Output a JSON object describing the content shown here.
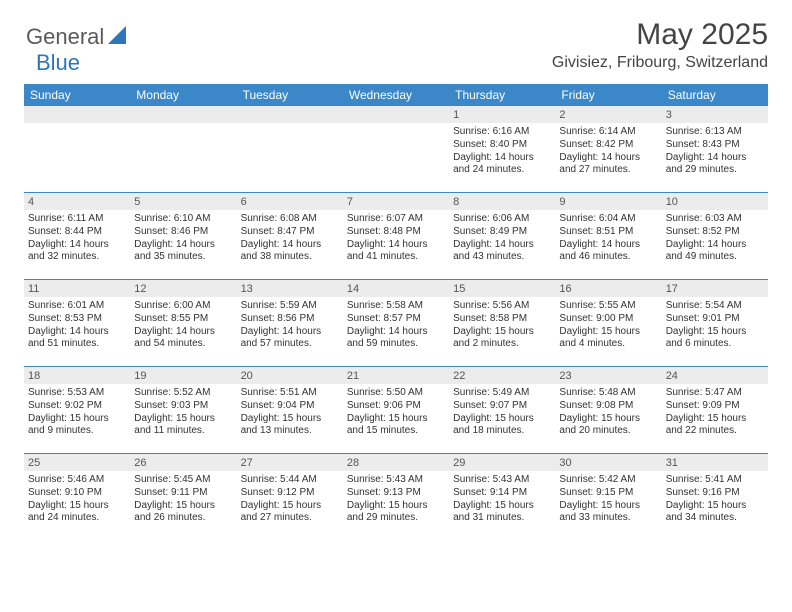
{
  "brand": {
    "text_general": "General",
    "text_blue": "Blue",
    "shape_color": "#2f76b8"
  },
  "title": "May 2025",
  "location": "Givisiez, Fribourg, Switzerland",
  "header_bg": "#3b87c8",
  "daynum_bg": "#ececec",
  "row_border": "#3b87c8",
  "weekdays": [
    "Sunday",
    "Monday",
    "Tuesday",
    "Wednesday",
    "Thursday",
    "Friday",
    "Saturday"
  ],
  "weeks": [
    [
      {
        "day": "",
        "sunrise": "",
        "sunset": "",
        "daylight": ""
      },
      {
        "day": "",
        "sunrise": "",
        "sunset": "",
        "daylight": ""
      },
      {
        "day": "",
        "sunrise": "",
        "sunset": "",
        "daylight": ""
      },
      {
        "day": "",
        "sunrise": "",
        "sunset": "",
        "daylight": ""
      },
      {
        "day": "1",
        "sunrise": "Sunrise: 6:16 AM",
        "sunset": "Sunset: 8:40 PM",
        "daylight": "Daylight: 14 hours and 24 minutes."
      },
      {
        "day": "2",
        "sunrise": "Sunrise: 6:14 AM",
        "sunset": "Sunset: 8:42 PM",
        "daylight": "Daylight: 14 hours and 27 minutes."
      },
      {
        "day": "3",
        "sunrise": "Sunrise: 6:13 AM",
        "sunset": "Sunset: 8:43 PM",
        "daylight": "Daylight: 14 hours and 29 minutes."
      }
    ],
    [
      {
        "day": "4",
        "sunrise": "Sunrise: 6:11 AM",
        "sunset": "Sunset: 8:44 PM",
        "daylight": "Daylight: 14 hours and 32 minutes."
      },
      {
        "day": "5",
        "sunrise": "Sunrise: 6:10 AM",
        "sunset": "Sunset: 8:46 PM",
        "daylight": "Daylight: 14 hours and 35 minutes."
      },
      {
        "day": "6",
        "sunrise": "Sunrise: 6:08 AM",
        "sunset": "Sunset: 8:47 PM",
        "daylight": "Daylight: 14 hours and 38 minutes."
      },
      {
        "day": "7",
        "sunrise": "Sunrise: 6:07 AM",
        "sunset": "Sunset: 8:48 PM",
        "daylight": "Daylight: 14 hours and 41 minutes."
      },
      {
        "day": "8",
        "sunrise": "Sunrise: 6:06 AM",
        "sunset": "Sunset: 8:49 PM",
        "daylight": "Daylight: 14 hours and 43 minutes."
      },
      {
        "day": "9",
        "sunrise": "Sunrise: 6:04 AM",
        "sunset": "Sunset: 8:51 PM",
        "daylight": "Daylight: 14 hours and 46 minutes."
      },
      {
        "day": "10",
        "sunrise": "Sunrise: 6:03 AM",
        "sunset": "Sunset: 8:52 PM",
        "daylight": "Daylight: 14 hours and 49 minutes."
      }
    ],
    [
      {
        "day": "11",
        "sunrise": "Sunrise: 6:01 AM",
        "sunset": "Sunset: 8:53 PM",
        "daylight": "Daylight: 14 hours and 51 minutes."
      },
      {
        "day": "12",
        "sunrise": "Sunrise: 6:00 AM",
        "sunset": "Sunset: 8:55 PM",
        "daylight": "Daylight: 14 hours and 54 minutes."
      },
      {
        "day": "13",
        "sunrise": "Sunrise: 5:59 AM",
        "sunset": "Sunset: 8:56 PM",
        "daylight": "Daylight: 14 hours and 57 minutes."
      },
      {
        "day": "14",
        "sunrise": "Sunrise: 5:58 AM",
        "sunset": "Sunset: 8:57 PM",
        "daylight": "Daylight: 14 hours and 59 minutes."
      },
      {
        "day": "15",
        "sunrise": "Sunrise: 5:56 AM",
        "sunset": "Sunset: 8:58 PM",
        "daylight": "Daylight: 15 hours and 2 minutes."
      },
      {
        "day": "16",
        "sunrise": "Sunrise: 5:55 AM",
        "sunset": "Sunset: 9:00 PM",
        "daylight": "Daylight: 15 hours and 4 minutes."
      },
      {
        "day": "17",
        "sunrise": "Sunrise: 5:54 AM",
        "sunset": "Sunset: 9:01 PM",
        "daylight": "Daylight: 15 hours and 6 minutes."
      }
    ],
    [
      {
        "day": "18",
        "sunrise": "Sunrise: 5:53 AM",
        "sunset": "Sunset: 9:02 PM",
        "daylight": "Daylight: 15 hours and 9 minutes."
      },
      {
        "day": "19",
        "sunrise": "Sunrise: 5:52 AM",
        "sunset": "Sunset: 9:03 PM",
        "daylight": "Daylight: 15 hours and 11 minutes."
      },
      {
        "day": "20",
        "sunrise": "Sunrise: 5:51 AM",
        "sunset": "Sunset: 9:04 PM",
        "daylight": "Daylight: 15 hours and 13 minutes."
      },
      {
        "day": "21",
        "sunrise": "Sunrise: 5:50 AM",
        "sunset": "Sunset: 9:06 PM",
        "daylight": "Daylight: 15 hours and 15 minutes."
      },
      {
        "day": "22",
        "sunrise": "Sunrise: 5:49 AM",
        "sunset": "Sunset: 9:07 PM",
        "daylight": "Daylight: 15 hours and 18 minutes."
      },
      {
        "day": "23",
        "sunrise": "Sunrise: 5:48 AM",
        "sunset": "Sunset: 9:08 PM",
        "daylight": "Daylight: 15 hours and 20 minutes."
      },
      {
        "day": "24",
        "sunrise": "Sunrise: 5:47 AM",
        "sunset": "Sunset: 9:09 PM",
        "daylight": "Daylight: 15 hours and 22 minutes."
      }
    ],
    [
      {
        "day": "25",
        "sunrise": "Sunrise: 5:46 AM",
        "sunset": "Sunset: 9:10 PM",
        "daylight": "Daylight: 15 hours and 24 minutes."
      },
      {
        "day": "26",
        "sunrise": "Sunrise: 5:45 AM",
        "sunset": "Sunset: 9:11 PM",
        "daylight": "Daylight: 15 hours and 26 minutes."
      },
      {
        "day": "27",
        "sunrise": "Sunrise: 5:44 AM",
        "sunset": "Sunset: 9:12 PM",
        "daylight": "Daylight: 15 hours and 27 minutes."
      },
      {
        "day": "28",
        "sunrise": "Sunrise: 5:43 AM",
        "sunset": "Sunset: 9:13 PM",
        "daylight": "Daylight: 15 hours and 29 minutes."
      },
      {
        "day": "29",
        "sunrise": "Sunrise: 5:43 AM",
        "sunset": "Sunset: 9:14 PM",
        "daylight": "Daylight: 15 hours and 31 minutes."
      },
      {
        "day": "30",
        "sunrise": "Sunrise: 5:42 AM",
        "sunset": "Sunset: 9:15 PM",
        "daylight": "Daylight: 15 hours and 33 minutes."
      },
      {
        "day": "31",
        "sunrise": "Sunrise: 5:41 AM",
        "sunset": "Sunset: 9:16 PM",
        "daylight": "Daylight: 15 hours and 34 minutes."
      }
    ]
  ]
}
